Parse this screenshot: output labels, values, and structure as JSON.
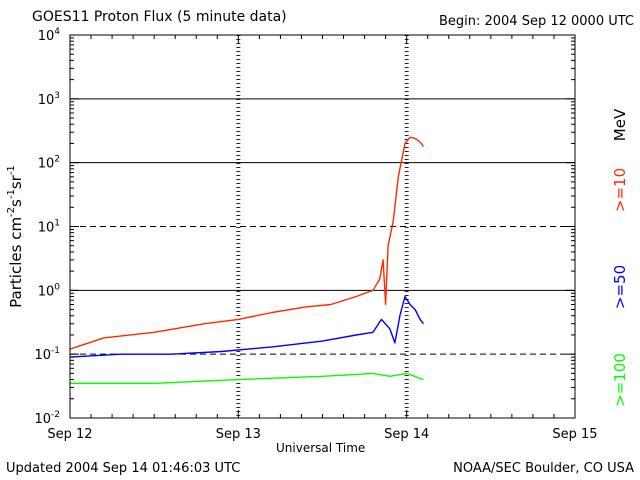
{
  "header": {
    "title": "GOES11 Proton Flux (5 minute data)",
    "begin": "Begin: 2004 Sep 12 0000 UTC"
  },
  "footer": {
    "updated": "Updated 2004 Sep 14 01:46:03 UTC",
    "credit": "NOAA/SEC Boulder, CO USA"
  },
  "chart_data": {
    "type": "line",
    "title": "GOES11 Proton Flux (5 minute data)",
    "xlabel": "Universal Time",
    "ylabel_parts": [
      "Particles cm",
      "-2",
      "s",
      "-1",
      "sr",
      "-1"
    ],
    "yscale": "log",
    "ylim": [
      0.01,
      10000
    ],
    "y_ticks": [
      {
        "mant": "10",
        "exp": "-2"
      },
      {
        "mant": "10",
        "exp": "-1"
      },
      {
        "mant": "10",
        "exp": "0"
      },
      {
        "mant": "10",
        "exp": "1"
      },
      {
        "mant": "10",
        "exp": "2"
      },
      {
        "mant": "10",
        "exp": "3"
      },
      {
        "mant": "10",
        "exp": "4"
      }
    ],
    "x_ticks": [
      "Sep 12",
      "Sep 13",
      "Sep 14",
      "Sep 15"
    ],
    "x_range_days": [
      0,
      3
    ],
    "grid": "horizontal at each decade, dashed at 10^1 and 10^-1",
    "unit_label": "MeV",
    "series": [
      {
        "name": ">=10",
        "color": "#ff2a00",
        "label": ">=10",
        "points": [
          [
            0,
            0.12
          ],
          [
            0.2,
            0.18
          ],
          [
            0.5,
            0.22
          ],
          [
            0.8,
            0.3
          ],
          [
            1.0,
            0.35
          ],
          [
            1.2,
            0.45
          ],
          [
            1.4,
            0.55
          ],
          [
            1.55,
            0.6
          ],
          [
            1.7,
            0.8
          ],
          [
            1.8,
            1.0
          ],
          [
            1.84,
            1.5
          ],
          [
            1.86,
            3.0
          ],
          [
            1.875,
            0.6
          ],
          [
            1.89,
            5.0
          ],
          [
            1.92,
            12
          ],
          [
            1.95,
            60
          ],
          [
            1.99,
            200
          ],
          [
            2.02,
            250
          ],
          [
            2.05,
            240
          ],
          [
            2.08,
            210
          ],
          [
            2.1,
            180
          ]
        ]
      },
      {
        "name": ">=50",
        "color": "#0000ff",
        "label": ">=50",
        "points": [
          [
            0,
            0.09
          ],
          [
            0.3,
            0.1
          ],
          [
            0.6,
            0.1
          ],
          [
            0.9,
            0.11
          ],
          [
            1.2,
            0.13
          ],
          [
            1.5,
            0.16
          ],
          [
            1.7,
            0.2
          ],
          [
            1.8,
            0.22
          ],
          [
            1.85,
            0.35
          ],
          [
            1.9,
            0.25
          ],
          [
            1.93,
            0.15
          ],
          [
            1.96,
            0.4
          ],
          [
            1.99,
            0.8
          ],
          [
            2.02,
            0.6
          ],
          [
            2.05,
            0.5
          ],
          [
            2.08,
            0.35
          ],
          [
            2.1,
            0.3
          ]
        ]
      },
      {
        "name": ">=100",
        "color": "#00ff00",
        "label": ">=100",
        "points": [
          [
            0,
            0.035
          ],
          [
            0.5,
            0.035
          ],
          [
            1.0,
            0.04
          ],
          [
            1.5,
            0.045
          ],
          [
            1.8,
            0.05
          ],
          [
            1.9,
            0.045
          ],
          [
            2.0,
            0.05
          ],
          [
            2.1,
            0.04
          ]
        ]
      }
    ]
  }
}
